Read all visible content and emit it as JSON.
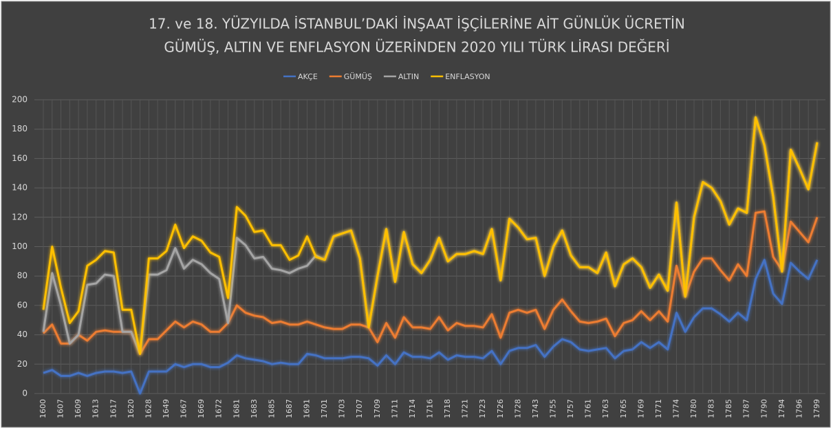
{
  "chart_data": {
    "type": "line",
    "title": [
      "17. ve 18. YÜZYILDA İSTANBUL’DAKİ İNŞAAT İŞÇİLERİNE AİT GÜNLÜK ÜCRETİN",
      "GÜMÜŞ, ALTIN VE ENFLASYON ÜZERİNDEN  2020 YILI TÜRK LİRASI DEĞERİ"
    ],
    "categories": [
      "1600",
      null,
      "1607",
      null,
      "1609",
      null,
      "1613",
      null,
      "1617",
      null,
      "1620",
      null,
      "1628",
      null,
      "1649",
      null,
      "1667",
      null,
      "1669",
      null,
      "1672",
      null,
      "1681",
      null,
      "1683",
      null,
      "1685",
      null,
      "1687",
      null,
      "1691",
      null,
      "1701",
      null,
      "1703",
      null,
      "1707",
      null,
      "1709",
      null,
      "1711",
      null,
      "1714",
      null,
      "1716",
      null,
      "1718",
      null,
      "1721",
      null,
      "1723",
      null,
      "1726",
      null,
      "1728",
      null,
      "1743",
      null,
      "1755",
      null,
      "1757",
      null,
      "1761",
      null,
      "1763",
      null,
      "1765",
      null,
      "1769",
      null,
      "1771",
      null,
      "1774",
      null,
      "1780",
      null,
      "1783",
      null,
      "1785",
      null,
      "1787",
      null,
      "1790",
      null,
      "1794",
      null,
      "1796",
      null,
      "1799"
    ],
    "series": [
      {
        "name": "AKÇE",
        "color": "#4472c4",
        "values": [
          14,
          16,
          12,
          12,
          14,
          12,
          14,
          15,
          15,
          14,
          15,
          0,
          15,
          15,
          15,
          20,
          18,
          20,
          20,
          18,
          18,
          21,
          26,
          24,
          23,
          22,
          20,
          21,
          20,
          20,
          27,
          26,
          24,
          24,
          24,
          25,
          25,
          24,
          19,
          26,
          20,
          28,
          25,
          25,
          24,
          28,
          23,
          26,
          25,
          25,
          24,
          29,
          20,
          29,
          31,
          31,
          33,
          25,
          32,
          37,
          35,
          30,
          29,
          30,
          31,
          24,
          29,
          30,
          35,
          31,
          35,
          30,
          55,
          42,
          52,
          58,
          58,
          54,
          49,
          55,
          50,
          78,
          91,
          68,
          61,
          89,
          83,
          78,
          91
        ]
      },
      {
        "name": "GÜMÜŞ",
        "color": "#ed7d31",
        "values": [
          41,
          47,
          34,
          34,
          40,
          36,
          42,
          43,
          42,
          42,
          42,
          27,
          37,
          37,
          43,
          49,
          45,
          49,
          47,
          42,
          42,
          48,
          60,
          55,
          53,
          52,
          48,
          49,
          47,
          47,
          49,
          47,
          45,
          44,
          44,
          47,
          47,
          45,
          35,
          48,
          38,
          52,
          45,
          45,
          44,
          52,
          43,
          48,
          46,
          46,
          45,
          54,
          38,
          55,
          57,
          55,
          57,
          44,
          57,
          64,
          56,
          49,
          48,
          49,
          51,
          39,
          48,
          50,
          56,
          50,
          56,
          49,
          87,
          66,
          83,
          92,
          92,
          84,
          77,
          88,
          80,
          123,
          124,
          93,
          84,
          117,
          110,
          103,
          120
        ]
      },
      {
        "name": "ALTIN",
        "color": "#a5a5a5",
        "values": [
          42,
          82,
          60,
          34,
          40,
          74,
          75,
          81,
          80,
          42,
          42,
          27,
          81,
          81,
          84,
          99,
          85,
          91,
          88,
          82,
          78,
          48,
          106,
          101,
          92,
          93,
          85,
          84,
          82,
          85,
          87,
          94,
          91,
          107,
          109,
          111,
          92,
          45,
          80,
          112,
          76,
          110,
          88,
          82,
          91,
          106,
          90,
          95,
          95,
          97,
          95,
          112,
          77,
          119,
          113,
          105,
          106,
          80,
          100,
          111,
          94,
          86,
          86,
          82,
          96,
          73,
          88,
          92,
          86,
          72,
          81,
          70,
          130,
          66,
          120,
          144,
          140,
          131,
          115,
          126,
          123,
          188,
          169,
          134,
          83,
          166,
          153,
          139,
          171
        ]
      },
      {
        "name": "ENFLASYON",
        "color": "#ffc000",
        "values": [
          57,
          100,
          72,
          48,
          56,
          87,
          91,
          97,
          96,
          57,
          57,
          27,
          92,
          92,
          97,
          115,
          99,
          107,
          104,
          96,
          93,
          65,
          127,
          121,
          110,
          111,
          101,
          101,
          91,
          94,
          107,
          93,
          91,
          107,
          109,
          111,
          92,
          45,
          80,
          112,
          76,
          110,
          88,
          82,
          91,
          106,
          90,
          95,
          95,
          97,
          95,
          112,
          77,
          119,
          113,
          105,
          106,
          80,
          100,
          111,
          94,
          86,
          86,
          82,
          96,
          73,
          88,
          92,
          86,
          72,
          81,
          70,
          130,
          66,
          120,
          144,
          140,
          131,
          115,
          126,
          123,
          188,
          169,
          134,
          83,
          166,
          153,
          139,
          171
        ]
      }
    ],
    "ylim": [
      0,
      200
    ],
    "yticks": [
      0,
      20,
      40,
      60,
      80,
      100,
      120,
      140,
      160,
      180,
      200
    ],
    "grid": true,
    "legend": "top"
  }
}
